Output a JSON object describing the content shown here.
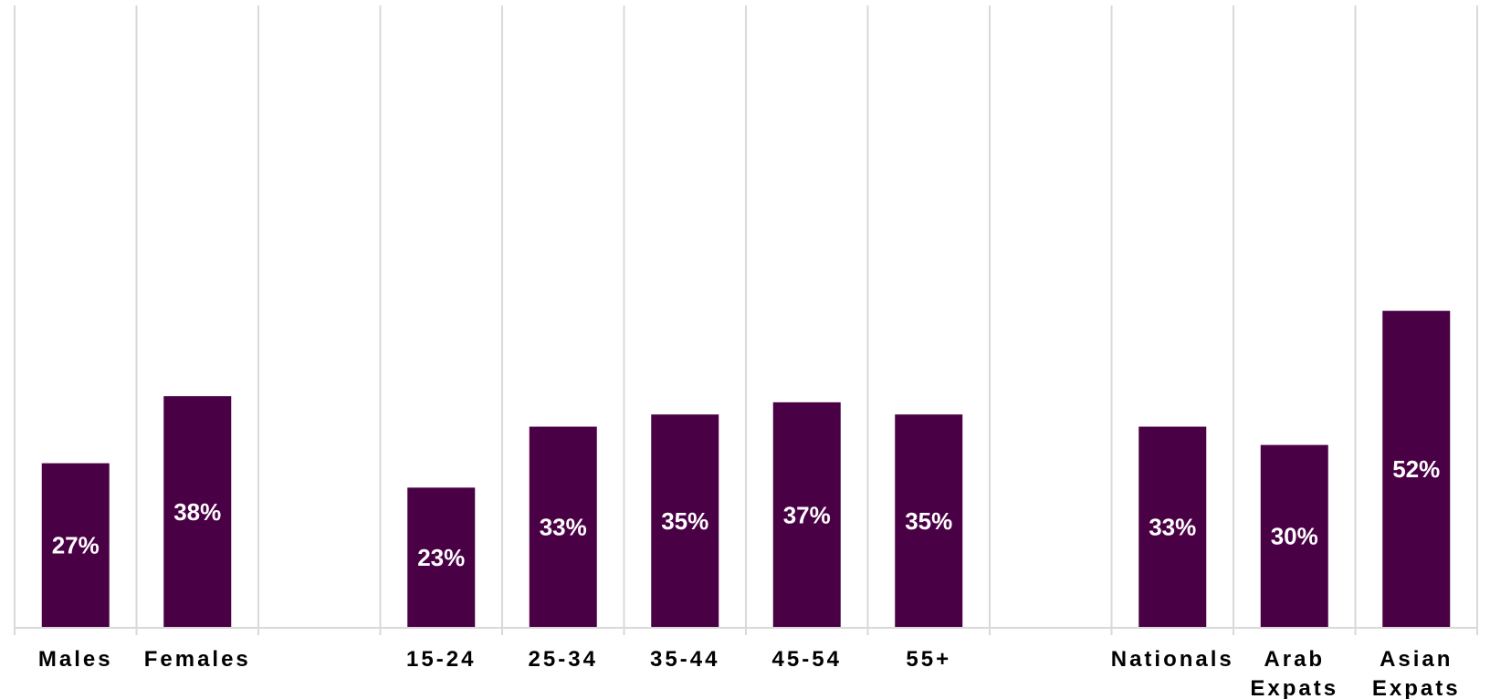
{
  "chart_data": {
    "type": "bar",
    "categories": [
      "Males",
      "Females",
      "",
      "15-24",
      "25-34",
      "35-44",
      "45-54",
      "55+",
      "",
      "Nationals",
      "Arab Expats",
      "Asian Expats"
    ],
    "values": [
      27,
      38,
      null,
      23,
      33,
      35,
      37,
      35,
      null,
      33,
      30,
      52
    ],
    "data_labels": [
      "27%",
      "38%",
      "",
      "23%",
      "33%",
      "35%",
      "37%",
      "35%",
      "",
      "33%",
      "30%",
      "52%"
    ],
    "ylim": [
      0,
      100
    ],
    "grid": "vertical",
    "legend": "none",
    "bar_color": "#4a0045",
    "label_color": "#ffffff",
    "gridline_color": "#d9d9d9"
  }
}
